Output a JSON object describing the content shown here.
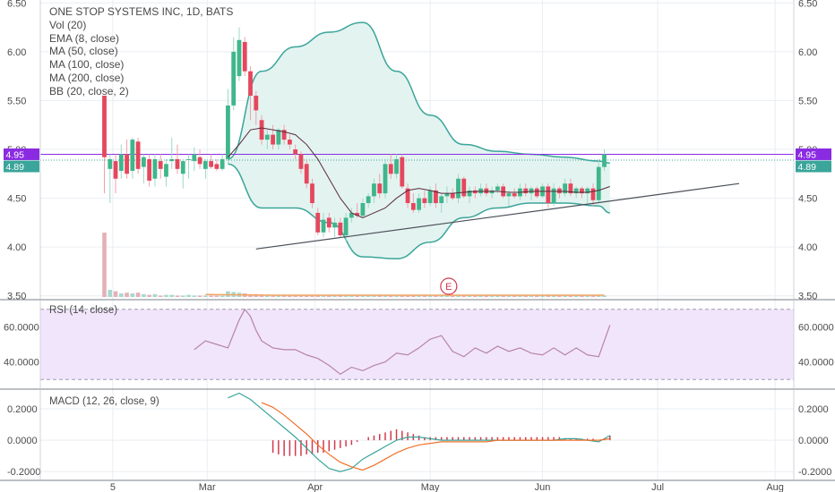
{
  "chart_data": {
    "type": "candlestick",
    "title": "ONE STOP SYSTEMS INC, 1D, BATS",
    "indicators": [
      "Vol (20)",
      "EMA (8, close)",
      "MA (50, close)",
      "MA (100, close)",
      "MA (200, close)",
      "BB (20, close, 2)"
    ],
    "price_axis": {
      "ticks": [
        "6.50",
        "6.00",
        "5.50",
        "5.00",
        "4.50",
        "4.00",
        "3.50"
      ],
      "ylim": [
        3.47,
        6.53
      ]
    },
    "x_ticks": [
      "5",
      "Mar",
      "Apr",
      "May",
      "Jun",
      "Jul",
      "Aug"
    ],
    "price_marker_top": "4.95",
    "price_marker_bottom": "4.89",
    "earnings_marker": "E",
    "candles": [
      {
        "o": 5.55,
        "h": 5.55,
        "l": 4.55,
        "c": 4.92
      },
      {
        "o": 4.8,
        "h": 4.95,
        "l": 4.45,
        "c": 4.9
      },
      {
        "o": 4.88,
        "h": 4.95,
        "l": 4.55,
        "c": 4.7
      },
      {
        "o": 4.78,
        "h": 5.05,
        "l": 4.7,
        "c": 4.95
      },
      {
        "o": 4.95,
        "h": 5.1,
        "l": 4.7,
        "c": 4.75
      },
      {
        "o": 4.78,
        "h": 5.12,
        "l": 4.7,
        "c": 5.1
      },
      {
        "o": 5.08,
        "h": 5.12,
        "l": 4.75,
        "c": 4.8
      },
      {
        "o": 4.82,
        "h": 4.95,
        "l": 4.65,
        "c": 4.92
      },
      {
        "o": 4.9,
        "h": 4.95,
        "l": 4.62,
        "c": 4.68
      },
      {
        "o": 4.7,
        "h": 4.95,
        "l": 4.62,
        "c": 4.9
      },
      {
        "o": 4.88,
        "h": 4.95,
        "l": 4.7,
        "c": 4.8
      },
      {
        "o": 4.72,
        "h": 4.9,
        "l": 4.62,
        "c": 4.85
      },
      {
        "o": 4.88,
        "h": 5.12,
        "l": 4.8,
        "c": 4.9
      },
      {
        "o": 4.9,
        "h": 5.05,
        "l": 4.75,
        "c": 4.8
      },
      {
        "o": 4.75,
        "h": 4.9,
        "l": 4.6,
        "c": 4.88
      },
      {
        "o": 4.9,
        "h": 4.95,
        "l": 4.7,
        "c": 4.9
      },
      {
        "o": 4.88,
        "h": 5.02,
        "l": 4.78,
        "c": 4.95
      },
      {
        "o": 4.92,
        "h": 5.0,
        "l": 4.8,
        "c": 4.85
      },
      {
        "o": 4.8,
        "h": 4.9,
        "l": 4.7,
        "c": 4.88
      },
      {
        "o": 4.88,
        "h": 4.95,
        "l": 4.8,
        "c": 4.82
      },
      {
        "o": 4.85,
        "h": 4.9,
        "l": 4.78,
        "c": 4.8
      },
      {
        "o": 4.8,
        "h": 4.95,
        "l": 4.78,
        "c": 4.9
      },
      {
        "o": 4.9,
        "h": 5.62,
        "l": 4.85,
        "c": 5.45
      },
      {
        "o": 5.45,
        "h": 6.15,
        "l": 5.4,
        "c": 6.0
      },
      {
        "o": 5.75,
        "h": 6.25,
        "l": 5.7,
        "c": 6.12
      },
      {
        "o": 6.1,
        "h": 6.15,
        "l": 5.75,
        "c": 5.8
      },
      {
        "o": 5.8,
        "h": 5.85,
        "l": 5.3,
        "c": 5.55
      },
      {
        "o": 5.55,
        "h": 5.6,
        "l": 5.25,
        "c": 5.4
      },
      {
        "o": 5.3,
        "h": 5.35,
        "l": 5.05,
        "c": 5.1
      },
      {
        "o": 5.1,
        "h": 5.2,
        "l": 5.0,
        "c": 5.15
      },
      {
        "o": 5.15,
        "h": 5.25,
        "l": 5.0,
        "c": 5.05
      },
      {
        "o": 5.05,
        "h": 5.22,
        "l": 5.0,
        "c": 5.2
      },
      {
        "o": 5.2,
        "h": 5.25,
        "l": 5.05,
        "c": 5.1
      },
      {
        "o": 5.1,
        "h": 5.15,
        "l": 5.0,
        "c": 5.05
      },
      {
        "o": 5.0,
        "h": 5.05,
        "l": 4.9,
        "c": 4.95
      },
      {
        "o": 4.95,
        "h": 4.98,
        "l": 4.75,
        "c": 4.8
      },
      {
        "o": 4.85,
        "h": 4.9,
        "l": 4.6,
        "c": 4.65
      },
      {
        "o": 4.65,
        "h": 4.7,
        "l": 4.4,
        "c": 4.45
      },
      {
        "o": 4.35,
        "h": 4.4,
        "l": 4.12,
        "c": 4.15
      },
      {
        "o": 4.15,
        "h": 4.35,
        "l": 4.1,
        "c": 4.28
      },
      {
        "o": 4.3,
        "h": 4.35,
        "l": 4.15,
        "c": 4.2
      },
      {
        "o": 4.2,
        "h": 4.3,
        "l": 4.1,
        "c": 4.25
      },
      {
        "o": 4.25,
        "h": 4.3,
        "l": 4.1,
        "c": 4.12
      },
      {
        "o": 4.12,
        "h": 4.35,
        "l": 4.05,
        "c": 4.3
      },
      {
        "o": 4.3,
        "h": 4.4,
        "l": 4.25,
        "c": 4.35
      },
      {
        "o": 4.35,
        "h": 4.45,
        "l": 4.3,
        "c": 4.32
      },
      {
        "o": 4.32,
        "h": 4.5,
        "l": 4.3,
        "c": 4.45
      },
      {
        "o": 4.45,
        "h": 4.55,
        "l": 4.4,
        "c": 4.52
      },
      {
        "o": 4.52,
        "h": 4.7,
        "l": 4.45,
        "c": 4.65
      },
      {
        "o": 4.65,
        "h": 4.75,
        "l": 4.5,
        "c": 4.55
      },
      {
        "o": 4.55,
        "h": 4.9,
        "l": 4.5,
        "c": 4.85
      },
      {
        "o": 4.85,
        "h": 4.95,
        "l": 4.7,
        "c": 4.75
      },
      {
        "o": 4.75,
        "h": 4.95,
        "l": 4.7,
        "c": 4.9
      },
      {
        "o": 4.92,
        "h": 4.95,
        "l": 4.6,
        "c": 4.62
      },
      {
        "o": 4.6,
        "h": 4.65,
        "l": 4.4,
        "c": 4.45
      },
      {
        "o": 4.45,
        "h": 4.55,
        "l": 4.35,
        "c": 4.38
      },
      {
        "o": 4.38,
        "h": 4.55,
        "l": 4.35,
        "c": 4.5
      },
      {
        "o": 4.5,
        "h": 4.58,
        "l": 4.4,
        "c": 4.45
      },
      {
        "o": 4.45,
        "h": 4.62,
        "l": 4.42,
        "c": 4.58
      },
      {
        "o": 4.58,
        "h": 4.65,
        "l": 4.4,
        "c": 4.45
      },
      {
        "o": 4.45,
        "h": 4.55,
        "l": 4.35,
        "c": 4.52
      },
      {
        "o": 4.52,
        "h": 4.62,
        "l": 4.45,
        "c": 4.55
      },
      {
        "o": 4.55,
        "h": 4.6,
        "l": 4.48,
        "c": 4.5
      },
      {
        "o": 4.5,
        "h": 4.75,
        "l": 4.45,
        "c": 4.7
      },
      {
        "o": 4.7,
        "h": 4.72,
        "l": 4.5,
        "c": 4.52
      },
      {
        "o": 4.52,
        "h": 4.62,
        "l": 4.45,
        "c": 4.58
      },
      {
        "o": 4.58,
        "h": 4.62,
        "l": 4.5,
        "c": 4.55
      },
      {
        "o": 4.55,
        "h": 4.65,
        "l": 4.52,
        "c": 4.6
      },
      {
        "o": 4.6,
        "h": 4.65,
        "l": 4.52,
        "c": 4.55
      },
      {
        "o": 4.55,
        "h": 4.62,
        "l": 4.5,
        "c": 4.58
      },
      {
        "o": 4.58,
        "h": 4.65,
        "l": 4.55,
        "c": 4.62
      },
      {
        "o": 4.62,
        "h": 4.65,
        "l": 4.5,
        "c": 4.52
      },
      {
        "o": 4.52,
        "h": 4.58,
        "l": 4.42,
        "c": 4.55
      },
      {
        "o": 4.55,
        "h": 4.6,
        "l": 4.5,
        "c": 4.52
      },
      {
        "o": 4.52,
        "h": 4.65,
        "l": 4.48,
        "c": 4.6
      },
      {
        "o": 4.6,
        "h": 4.65,
        "l": 4.52,
        "c": 4.55
      },
      {
        "o": 4.55,
        "h": 4.62,
        "l": 4.48,
        "c": 4.6
      },
      {
        "o": 4.6,
        "h": 4.62,
        "l": 4.5,
        "c": 4.52
      },
      {
        "o": 4.52,
        "h": 4.65,
        "l": 4.5,
        "c": 4.62
      },
      {
        "o": 4.62,
        "h": 4.65,
        "l": 4.4,
        "c": 4.45
      },
      {
        "o": 4.45,
        "h": 4.65,
        "l": 4.42,
        "c": 4.6
      },
      {
        "o": 4.6,
        "h": 4.62,
        "l": 4.5,
        "c": 4.55
      },
      {
        "o": 4.55,
        "h": 4.7,
        "l": 4.52,
        "c": 4.65
      },
      {
        "o": 4.65,
        "h": 4.7,
        "l": 4.52,
        "c": 4.55
      },
      {
        "o": 4.55,
        "h": 4.62,
        "l": 4.5,
        "c": 4.6
      },
      {
        "o": 4.6,
        "h": 4.62,
        "l": 4.5,
        "c": 4.55
      },
      {
        "o": 4.55,
        "h": 4.62,
        "l": 4.45,
        "c": 4.6
      },
      {
        "o": 4.6,
        "h": 4.65,
        "l": 4.42,
        "c": 4.48
      },
      {
        "o": 4.48,
        "h": 4.9,
        "l": 4.45,
        "c": 4.82
      },
      {
        "o": 4.82,
        "h": 5.0,
        "l": 4.78,
        "c": 4.95
      }
    ],
    "volume": [
      0.9,
      0.1,
      0.08,
      0.05,
      0.06,
      0.05,
      0.06,
      0.04,
      0.03,
      0.04,
      0.02,
      0.03,
      0.03,
      0.02,
      0.02,
      0.03,
      0.02,
      0.02,
      0.02,
      0.02,
      0.02,
      0.02,
      0.08,
      0.07,
      0.06,
      0.05,
      0.04,
      0.04,
      0.03,
      0.03,
      0.03,
      0.03,
      0.02,
      0.02,
      0.02,
      0.02,
      0.03,
      0.03,
      0.02,
      0.02,
      0.02,
      0.02,
      0.02,
      0.02,
      0.02,
      0.02,
      0.02,
      0.02,
      0.02,
      0.02,
      0.02,
      0.02,
      0.02,
      0.02,
      0.02,
      0.02,
      0.02,
      0.02,
      0.02,
      0.02,
      0.02,
      0.02,
      0.02,
      0.02,
      0.02,
      0.02,
      0.02,
      0.02,
      0.02,
      0.02,
      0.02,
      0.02,
      0.02,
      0.02,
      0.02,
      0.02,
      0.02,
      0.02,
      0.02,
      0.02,
      0.02,
      0.02,
      0.02,
      0.02,
      0.02,
      0.02,
      0.02,
      0.02,
      0.03,
      0.02
    ],
    "bollinger": {
      "upper_x": [
        22,
        28,
        34,
        40,
        46,
        52,
        58,
        64,
        70,
        76,
        82,
        88,
        90
      ],
      "upper": [
        4.9,
        5.8,
        6.05,
        6.2,
        6.3,
        5.8,
        5.35,
        5.05,
        4.98,
        4.95,
        4.92,
        4.88,
        4.86
      ],
      "lower_x": [
        22,
        28,
        34,
        40,
        46,
        52,
        58,
        64,
        70,
        76,
        82,
        88,
        90
      ],
      "lower": [
        4.85,
        4.4,
        4.4,
        4.25,
        3.9,
        3.88,
        4.05,
        4.3,
        4.4,
        4.45,
        4.45,
        4.42,
        4.35
      ]
    },
    "ma_line": {
      "x": [
        22,
        24,
        26,
        28,
        30,
        32,
        34,
        36,
        38,
        40,
        42,
        44,
        46,
        48,
        50,
        52,
        54,
        56,
        58,
        60,
        62,
        64,
        66,
        68,
        70,
        72,
        74,
        76,
        78,
        80,
        82,
        84,
        86,
        88,
        90
      ],
      "y": [
        4.92,
        5.05,
        5.2,
        5.22,
        5.2,
        5.18,
        5.15,
        5.05,
        4.9,
        4.7,
        4.5,
        4.35,
        4.3,
        4.35,
        4.4,
        4.5,
        4.58,
        4.6,
        4.58,
        4.55,
        4.55,
        4.56,
        4.57,
        4.57,
        4.57,
        4.56,
        4.56,
        4.57,
        4.57,
        4.57,
        4.57,
        4.56,
        4.56,
        4.58,
        4.62
      ]
    },
    "trend_line": {
      "x": [
        27,
        113
      ],
      "y": [
        3.98,
        4.65
      ]
    },
    "rsi": {
      "title": "RSI (14, close)",
      "ticks": [
        "60.0000",
        "40.0000"
      ],
      "ylim": [
        25,
        75
      ],
      "x": [
        16,
        18,
        20,
        22,
        23,
        24,
        25,
        26,
        27,
        28,
        29,
        30,
        32,
        34,
        36,
        38,
        40,
        42,
        44,
        46,
        48,
        50,
        52,
        54,
        56,
        58,
        60,
        62,
        64,
        66,
        68,
        70,
        72,
        74,
        76,
        78,
        80,
        82,
        84,
        86,
        88,
        90
      ],
      "y": [
        47,
        52,
        50,
        48,
        56,
        64,
        70,
        66,
        58,
        52,
        50,
        48,
        47,
        47,
        44,
        42,
        38,
        33,
        37,
        35,
        38,
        40,
        45,
        44,
        48,
        53,
        55,
        46,
        43,
        48,
        45,
        49,
        46,
        48,
        45,
        44,
        48,
        44,
        48,
        44,
        43,
        61
      ]
    },
    "macd": {
      "title": "MACD (12, 26, close, 9)",
      "ticks": [
        "0.2000",
        "0.0000",
        "-0.2000"
      ],
      "ylim": [
        -0.25,
        0.32
      ],
      "macd_x": [
        22,
        24,
        26,
        28,
        30,
        32,
        34,
        36,
        38,
        40,
        42,
        44,
        46,
        48,
        50,
        52,
        54,
        56,
        58,
        60,
        62,
        64,
        66,
        68,
        70,
        72,
        74,
        76,
        78,
        80,
        82,
        84,
        86,
        88,
        90
      ],
      "macd_y": [
        0.27,
        0.3,
        0.26,
        0.2,
        0.14,
        0.08,
        0.02,
        -0.05,
        -0.12,
        -0.18,
        -0.2,
        -0.18,
        -0.12,
        -0.08,
        -0.04,
        0.0,
        0.02,
        0.02,
        0.01,
        0.0,
        0.0,
        0.0,
        0.0,
        0.0,
        0.0,
        0.0,
        0.0,
        0.0,
        0.0,
        0.0,
        0.01,
        0.01,
        0.0,
        -0.01,
        0.03
      ],
      "signal_x": [
        28,
        30,
        32,
        34,
        36,
        38,
        40,
        42,
        44,
        46,
        48,
        50,
        52,
        54,
        56,
        58,
        60,
        62,
        64,
        66,
        68,
        70,
        72,
        74,
        76,
        78,
        80,
        82,
        84,
        86,
        88,
        90
      ],
      "signal_y": [
        0.24,
        0.21,
        0.16,
        0.1,
        0.04,
        -0.03,
        -0.09,
        -0.14,
        -0.17,
        -0.19,
        -0.16,
        -0.12,
        -0.08,
        -0.05,
        -0.03,
        -0.02,
        -0.01,
        -0.01,
        -0.01,
        -0.01,
        -0.01,
        0.0,
        0.0,
        0.0,
        0.0,
        0.0,
        0.0,
        0.0,
        0.0,
        0.0,
        0.0,
        0.01
      ],
      "hist_x": [
        30,
        31,
        32,
        33,
        34,
        35,
        36,
        37,
        38,
        39,
        40,
        41,
        42,
        43,
        44,
        45,
        46,
        47,
        48,
        49,
        50,
        51,
        52,
        53,
        54,
        55,
        56,
        57,
        58,
        59,
        60,
        61,
        62,
        63,
        64,
        65,
        66,
        67,
        68,
        69,
        70,
        71,
        72,
        73,
        74,
        75,
        76,
        77,
        78,
        79,
        80,
        81,
        82,
        83,
        84,
        85,
        86,
        87,
        88,
        89,
        90
      ],
      "hist_y": [
        -0.08,
        -0.09,
        -0.1,
        -0.1,
        -0.1,
        -0.1,
        -0.09,
        -0.09,
        -0.08,
        -0.08,
        -0.07,
        -0.06,
        -0.05,
        -0.04,
        -0.03,
        -0.01,
        0.0,
        0.02,
        0.03,
        0.04,
        0.05,
        0.06,
        0.07,
        0.06,
        0.05,
        0.04,
        0.03,
        0.02,
        0.02,
        0.02,
        0.02,
        0.02,
        0.02,
        0.02,
        0.02,
        0.02,
        0.02,
        0.02,
        0.02,
        0.02,
        0.02,
        0.02,
        0.02,
        0.02,
        0.02,
        0.02,
        0.02,
        0.02,
        0.02,
        0.02,
        0.02,
        0.02,
        0.01,
        0.01,
        0.01,
        0.01,
        0.01,
        0.01,
        0.0,
        0.01,
        0.03
      ]
    }
  }
}
